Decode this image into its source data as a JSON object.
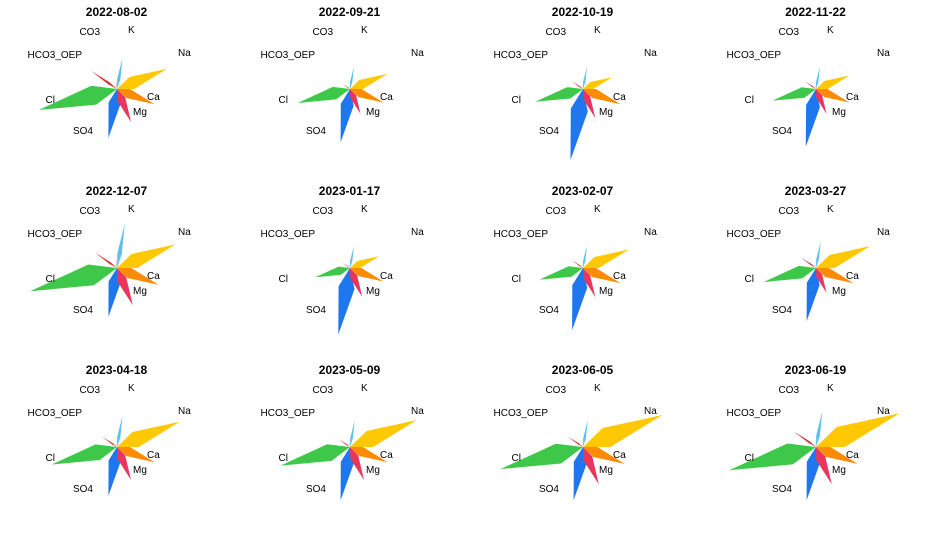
{
  "chart_data": {
    "type": "stiff-star",
    "colors": {
      "Na": "#FFC800",
      "K": "#5BC0EB",
      "Ca": "#FF8C00",
      "Mg": "#E8365D",
      "SO4": "#1F77F0",
      "Cl": "#3EC84A",
      "HCO3_OEP": "#D13A3A",
      "CO3": "#A0A0A0"
    },
    "axis_labels": [
      "K",
      "Na",
      "Ca",
      "Mg",
      "SO4",
      "Cl",
      "HCO3_OEP",
      "CO3"
    ],
    "panels": [
      {
        "title": "2022-08-02",
        "values": {
          "Na": 0.6,
          "K": 0.35,
          "Ca": 0.45,
          "Mg": 0.4,
          "SO4": 0.55,
          "Cl": 0.9,
          "HCO3_OEP": 0.35,
          "CO3": 0.1
        }
      },
      {
        "title": "2022-09-21",
        "values": {
          "Na": 0.45,
          "K": 0.25,
          "Ca": 0.4,
          "Mg": 0.3,
          "SO4": 0.6,
          "Cl": 0.6,
          "HCO3_OEP": 0.1,
          "CO3": 0.05
        }
      },
      {
        "title": "2022-10-19",
        "values": {
          "Na": 0.35,
          "K": 0.25,
          "Ca": 0.45,
          "Mg": 0.35,
          "SO4": 0.8,
          "Cl": 0.55,
          "HCO3_OEP": 0.15,
          "CO3": 0.05
        }
      },
      {
        "title": "2022-11-22",
        "values": {
          "Na": 0.4,
          "K": 0.25,
          "Ca": 0.4,
          "Mg": 0.3,
          "SO4": 0.65,
          "Cl": 0.5,
          "HCO3_OEP": 0.15,
          "CO3": 0.05
        }
      },
      {
        "title": "2022-12-07",
        "values": {
          "Na": 0.7,
          "K": 0.5,
          "Ca": 0.5,
          "Mg": 0.45,
          "SO4": 0.55,
          "Cl": 1.0,
          "HCO3_OEP": 0.3,
          "CO3": 0.1
        }
      },
      {
        "title": "2023-01-17",
        "values": {
          "Na": 0.35,
          "K": 0.25,
          "Ca": 0.4,
          "Mg": 0.35,
          "SO4": 0.75,
          "Cl": 0.4,
          "HCO3_OEP": 0.1,
          "CO3": 0.05
        }
      },
      {
        "title": "2023-02-07",
        "values": {
          "Na": 0.55,
          "K": 0.25,
          "Ca": 0.45,
          "Mg": 0.35,
          "SO4": 0.7,
          "Cl": 0.5,
          "HCO3_OEP": 0.15,
          "CO3": 0.05
        }
      },
      {
        "title": "2023-03-27",
        "values": {
          "Na": 0.65,
          "K": 0.3,
          "Ca": 0.45,
          "Mg": 0.3,
          "SO4": 0.6,
          "Cl": 0.6,
          "HCO3_OEP": 0.2,
          "CO3": 0.05
        }
      },
      {
        "title": "2023-04-18",
        "values": {
          "Na": 0.75,
          "K": 0.35,
          "Ca": 0.45,
          "Mg": 0.4,
          "SO4": 0.55,
          "Cl": 0.75,
          "HCO3_OEP": 0.2,
          "CO3": 0.05
        }
      },
      {
        "title": "2023-05-09",
        "values": {
          "Na": 0.8,
          "K": 0.3,
          "Ca": 0.45,
          "Mg": 0.4,
          "SO4": 0.6,
          "Cl": 0.8,
          "HCO3_OEP": 0.15,
          "CO3": 0.05
        }
      },
      {
        "title": "2023-06-05",
        "values": {
          "Na": 0.95,
          "K": 0.3,
          "Ca": 0.5,
          "Mg": 0.45,
          "SO4": 0.6,
          "Cl": 0.95,
          "HCO3_OEP": 0.2,
          "CO3": 0.05
        }
      },
      {
        "title": "2023-06-19",
        "values": {
          "Na": 1.0,
          "K": 0.4,
          "Ca": 0.5,
          "Mg": 0.45,
          "SO4": 0.6,
          "Cl": 1.0,
          "HCO3_OEP": 0.3,
          "CO3": 0.05
        }
      }
    ]
  }
}
